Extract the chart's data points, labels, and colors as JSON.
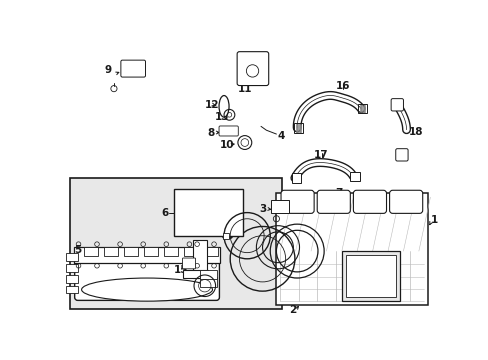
{
  "bg": "#ffffff",
  "box_bg": "#e8e8e8",
  "dark": "#1a1a1a",
  "mid": "#555555",
  "figsize": [
    4.89,
    3.6
  ],
  "dpi": 100,
  "xlim": [
    0,
    489
  ],
  "ylim": [
    0,
    360
  ]
}
